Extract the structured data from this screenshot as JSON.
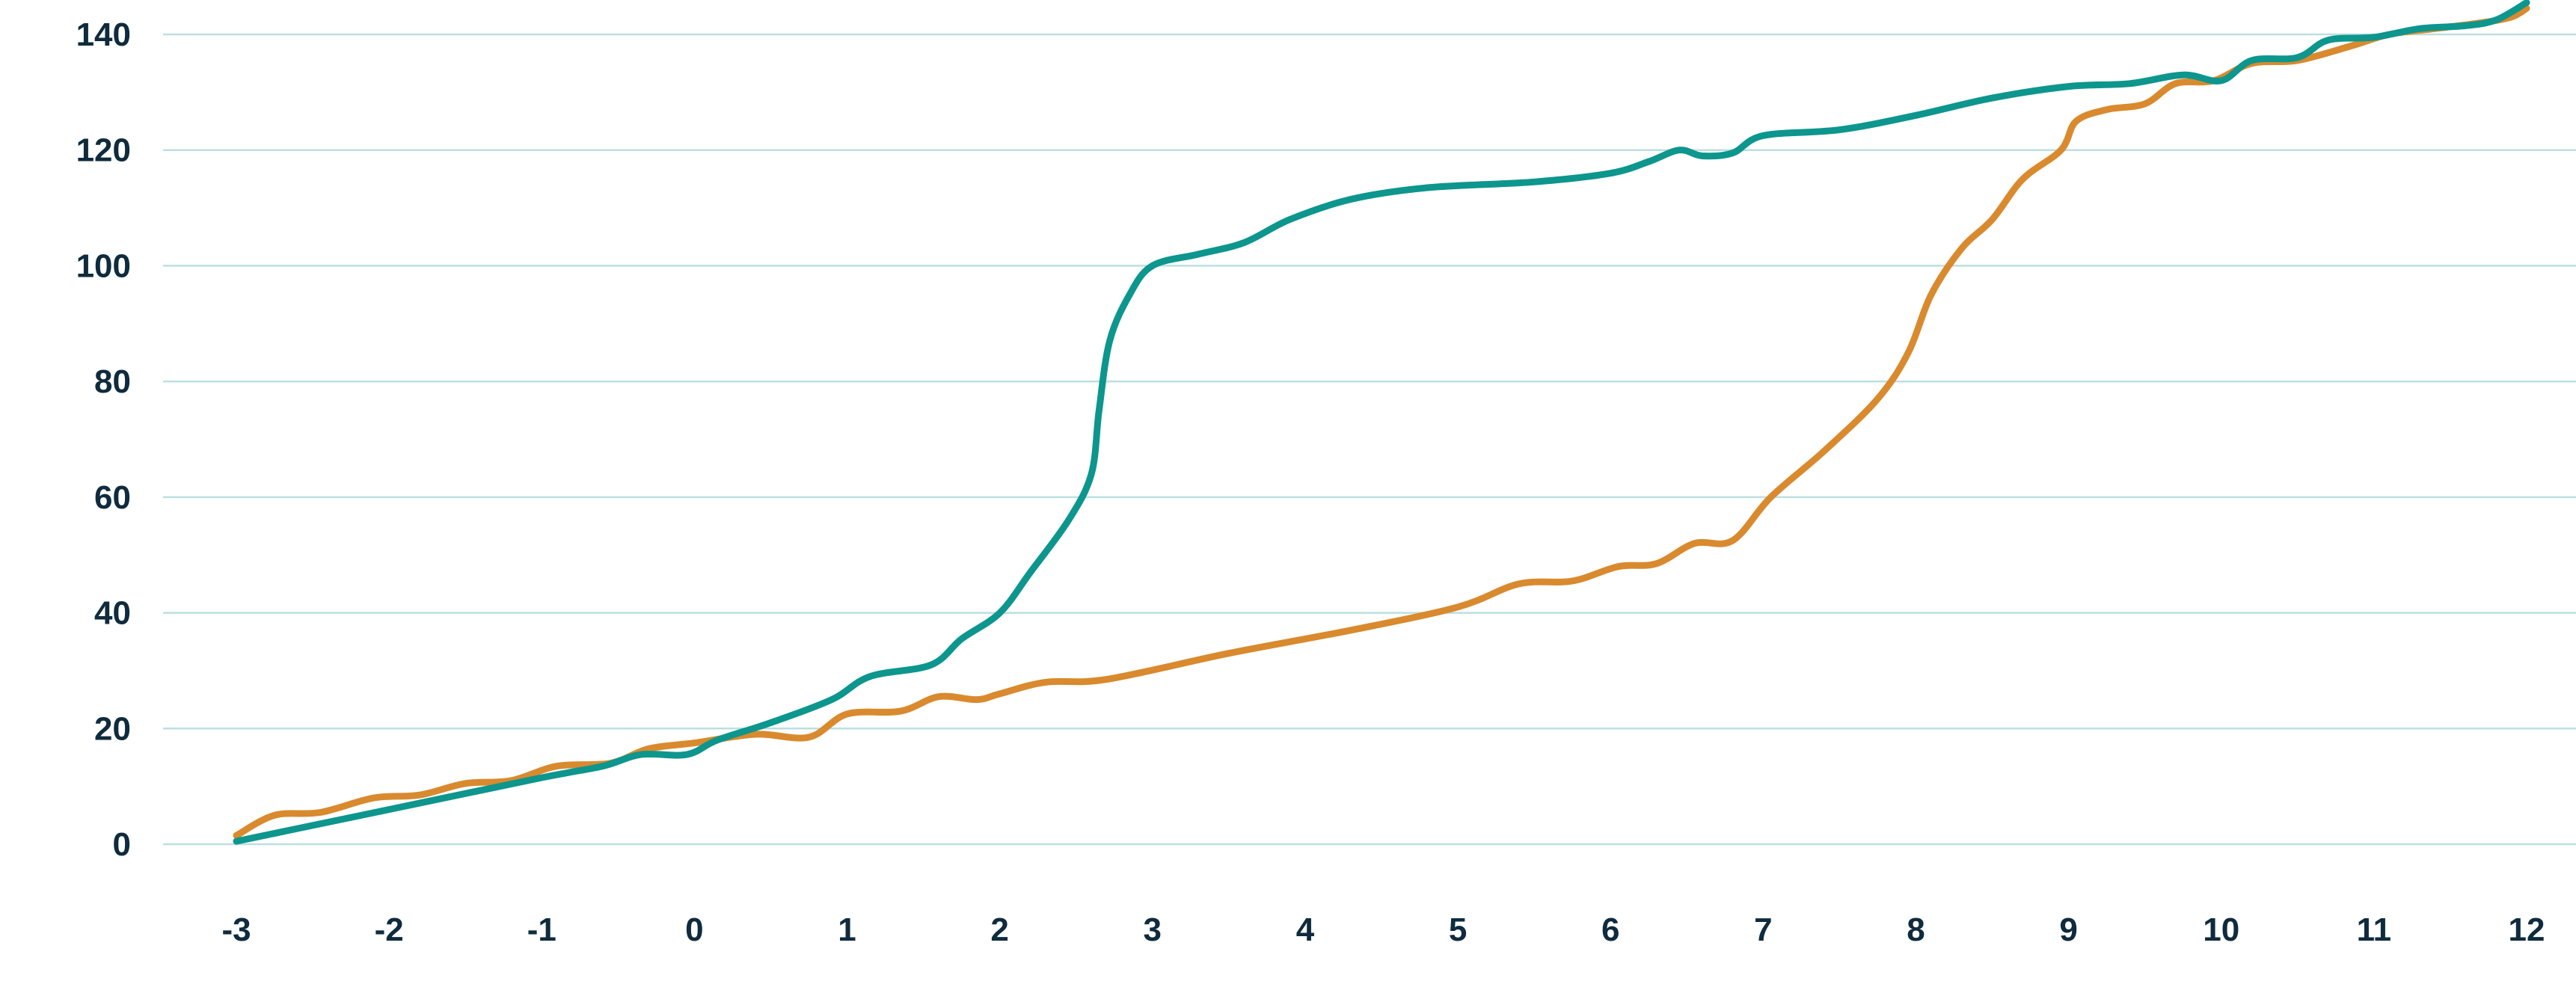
{
  "chart_data": {
    "type": "line",
    "title": "",
    "xlabel": "",
    "ylabel": "",
    "xlim": [
      -3,
      12
    ],
    "ylim": [
      0,
      140
    ],
    "grid": true,
    "legend": "none",
    "x_ticks": [
      "-3",
      "-2",
      "-1",
      "0",
      "1",
      "2",
      "3",
      "4",
      "5",
      "6",
      "7",
      "8",
      "9",
      "10",
      "11",
      "12"
    ],
    "y_ticks": [
      "0",
      "20",
      "40",
      "60",
      "80",
      "100",
      "120",
      "140"
    ],
    "series": [
      {
        "color": "#d98a2e",
        "points": [
          [
            -3,
            1.5
          ],
          [
            -2.75,
            5
          ],
          [
            -2.45,
            5.5
          ],
          [
            -2.1,
            8
          ],
          [
            -1.8,
            8.5
          ],
          [
            -1.5,
            10.5
          ],
          [
            -1.2,
            11
          ],
          [
            -0.9,
            13.5
          ],
          [
            -0.55,
            14
          ],
          [
            -0.3,
            16.5
          ],
          [
            0,
            17.5
          ],
          [
            0.4,
            19
          ],
          [
            0.75,
            18.5
          ],
          [
            1.0,
            22.5
          ],
          [
            1.35,
            23
          ],
          [
            1.6,
            25.5
          ],
          [
            1.85,
            25
          ],
          [
            2.0,
            26
          ],
          [
            2.3,
            28
          ],
          [
            2.7,
            28.5
          ],
          [
            3.5,
            33
          ],
          [
            4.3,
            37
          ],
          [
            5.0,
            41
          ],
          [
            5.4,
            45
          ],
          [
            5.75,
            45.5
          ],
          [
            6.05,
            48
          ],
          [
            6.3,
            48.5
          ],
          [
            6.55,
            52
          ],
          [
            6.8,
            52.5
          ],
          [
            7.05,
            60
          ],
          [
            7.4,
            68
          ],
          [
            7.75,
            77
          ],
          [
            7.95,
            85
          ],
          [
            8.1,
            95
          ],
          [
            8.3,
            103
          ],
          [
            8.5,
            108
          ],
          [
            8.7,
            115
          ],
          [
            8.95,
            120
          ],
          [
            9.05,
            125
          ],
          [
            9.25,
            127
          ],
          [
            9.5,
            128
          ],
          [
            9.7,
            131.5
          ],
          [
            9.95,
            132
          ],
          [
            10.2,
            135
          ],
          [
            10.5,
            135.5
          ],
          [
            10.85,
            138
          ],
          [
            11.1,
            140
          ],
          [
            11.4,
            141
          ],
          [
            11.7,
            142
          ],
          [
            11.9,
            143
          ],
          [
            12.0,
            144.5
          ]
        ]
      },
      {
        "color": "#0d968d",
        "points": [
          [
            -3,
            0.5
          ],
          [
            -2.0,
            6
          ],
          [
            -1.0,
            11.5
          ],
          [
            -0.6,
            13.5
          ],
          [
            -0.35,
            15.5
          ],
          [
            -0.05,
            15.5
          ],
          [
            0.15,
            18
          ],
          [
            0.5,
            21
          ],
          [
            0.9,
            25
          ],
          [
            1.15,
            29
          ],
          [
            1.55,
            31
          ],
          [
            1.75,
            35.5
          ],
          [
            2.0,
            40
          ],
          [
            2.2,
            47
          ],
          [
            2.45,
            56
          ],
          [
            2.6,
            64
          ],
          [
            2.65,
            75
          ],
          [
            2.72,
            87
          ],
          [
            2.85,
            95
          ],
          [
            3.0,
            100
          ],
          [
            3.3,
            102
          ],
          [
            3.6,
            104
          ],
          [
            3.9,
            108
          ],
          [
            4.3,
            111.5
          ],
          [
            4.8,
            113.5
          ],
          [
            5.5,
            114.5
          ],
          [
            6.0,
            116
          ],
          [
            6.25,
            118
          ],
          [
            6.45,
            120
          ],
          [
            6.6,
            119
          ],
          [
            6.8,
            119.5
          ],
          [
            7.0,
            122.5
          ],
          [
            7.5,
            123.5
          ],
          [
            8.0,
            126
          ],
          [
            8.5,
            129
          ],
          [
            9.0,
            131
          ],
          [
            9.4,
            131.5
          ],
          [
            9.75,
            133
          ],
          [
            10.0,
            132
          ],
          [
            10.2,
            135.5
          ],
          [
            10.5,
            136
          ],
          [
            10.7,
            139
          ],
          [
            11.0,
            139.5
          ],
          [
            11.3,
            141
          ],
          [
            11.6,
            141.5
          ],
          [
            11.8,
            142.5
          ],
          [
            12.0,
            145.5
          ]
        ]
      }
    ]
  }
}
